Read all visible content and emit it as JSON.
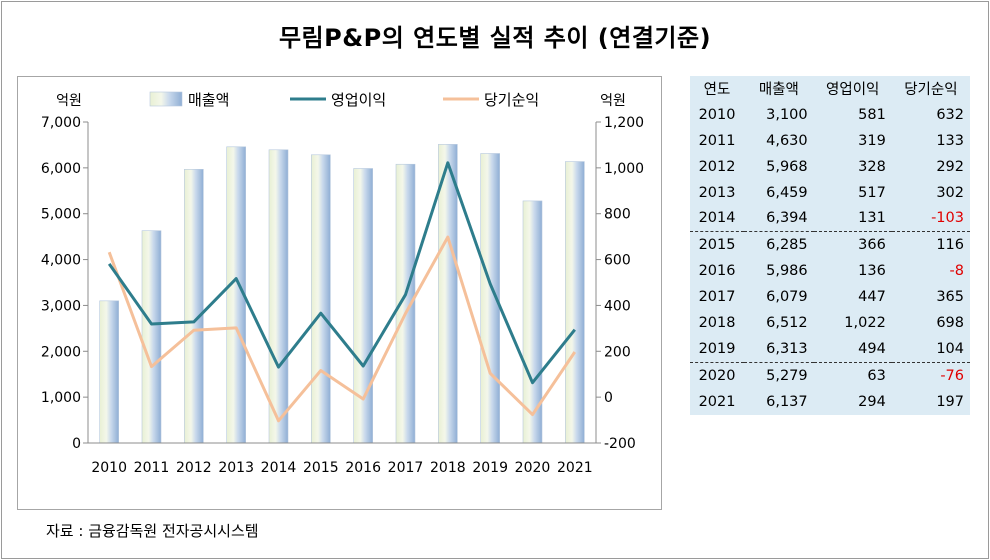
{
  "title": "무림P&P의 연도별 실적 추이 (연결기준)",
  "source": "자료 : 금융감독원 전자공시시스템",
  "colors": {
    "revenue_bar": "#c7d7ea",
    "operating_profit": "#2e7d8c",
    "net_income": "#f5c09a",
    "negative_text": "#e00000",
    "table_bg": "#dcebf4"
  },
  "chart_data": {
    "type": "bar",
    "categories": [
      "2010",
      "2011",
      "2012",
      "2013",
      "2014",
      "2015",
      "2016",
      "2017",
      "2018",
      "2019",
      "2020",
      "2021"
    ],
    "series": [
      {
        "name": "매출액",
        "type": "bar",
        "axis": "left",
        "values": [
          3100,
          4630,
          5968,
          6459,
          6394,
          6285,
          5986,
          6079,
          6512,
          6313,
          5279,
          6137
        ]
      },
      {
        "name": "영업이익",
        "type": "line",
        "axis": "right",
        "values": [
          581,
          319,
          328,
          517,
          131,
          366,
          136,
          447,
          1022,
          494,
          63,
          294
        ]
      },
      {
        "name": "당기순익",
        "type": "line",
        "axis": "right",
        "values": [
          632,
          133,
          292,
          302,
          -103,
          116,
          -8,
          365,
          698,
          104,
          -76,
          197
        ]
      }
    ],
    "ylabel_left": "억원",
    "ylabel_right": "억원",
    "ylim_left": [
      0,
      7000
    ],
    "ylim_right": [
      -200,
      1200
    ],
    "yticks_left": [
      "0",
      "1,000",
      "2,000",
      "3,000",
      "4,000",
      "5,000",
      "6,000",
      "7,000"
    ],
    "yticks_right": [
      "-200",
      "0",
      "200",
      "400",
      "600",
      "800",
      "1,000",
      "1,200"
    ],
    "grid": false,
    "legend_position": "top"
  },
  "table": {
    "headers": [
      "연도",
      "매출액",
      "영업이익",
      "당기순익"
    ],
    "rows": [
      {
        "year": "2010",
        "revenue": "3,100",
        "op": "581",
        "net": "632"
      },
      {
        "year": "2011",
        "revenue": "4,630",
        "op": "319",
        "net": "133"
      },
      {
        "year": "2012",
        "revenue": "5,968",
        "op": "328",
        "net": "292"
      },
      {
        "year": "2013",
        "revenue": "6,459",
        "op": "517",
        "net": "302"
      },
      {
        "year": "2014",
        "revenue": "6,394",
        "op": "131",
        "net": "-103"
      },
      {
        "year": "2015",
        "revenue": "6,285",
        "op": "366",
        "net": "116"
      },
      {
        "year": "2016",
        "revenue": "5,986",
        "op": "136",
        "net": "-8"
      },
      {
        "year": "2017",
        "revenue": "6,079",
        "op": "447",
        "net": "365"
      },
      {
        "year": "2018",
        "revenue": "6,512",
        "op": "1,022",
        "net": "698"
      },
      {
        "year": "2019",
        "revenue": "6,313",
        "op": "494",
        "net": "104"
      },
      {
        "year": "2020",
        "revenue": "5,279",
        "op": "63",
        "net": "-76"
      },
      {
        "year": "2021",
        "revenue": "6,137",
        "op": "294",
        "net": "197"
      }
    ]
  }
}
